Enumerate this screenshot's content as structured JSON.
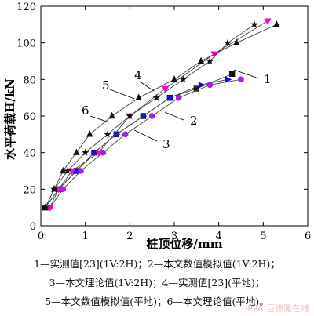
{
  "chart_data": {
    "type": "line",
    "xlabel": "桩顶位移/mm",
    "ylabel": "水平荷载H/kN",
    "xlim": [
      0,
      6
    ],
    "ylim": [
      0,
      120
    ],
    "xticks": [
      "0",
      "1",
      "2",
      "3",
      "4",
      "5",
      "6"
    ],
    "yticks": [
      "0",
      "20",
      "40",
      "60",
      "80",
      "100",
      "120"
    ],
    "series": [
      {
        "name": "1",
        "marker": "square",
        "color": "#111111",
        "x": [
          0.1,
          0.4,
          0.8,
          1.2,
          1.7,
          2.3,
          2.9,
          3.5,
          4.3
        ],
        "y": [
          10,
          20,
          30,
          40,
          50,
          60,
          70,
          75,
          83
        ]
      },
      {
        "name": "2",
        "marker": "triangle-right",
        "color": "#1010ee",
        "x": [
          0.1,
          0.4,
          0.8,
          1.2,
          1.7,
          2.3,
          2.9,
          3.6,
          4.2
        ],
        "y": [
          10,
          20,
          30,
          40,
          50,
          60,
          70,
          77,
          80
        ]
      },
      {
        "name": "3",
        "marker": "circle",
        "color": "#a020f0",
        "x": [
          0.2,
          0.5,
          0.9,
          1.4,
          1.9,
          2.5,
          3.1,
          3.8,
          4.5
        ],
        "y": [
          10,
          20,
          30,
          40,
          50,
          60,
          70,
          77,
          80
        ]
      },
      {
        "name": "4",
        "marker": "triangle-down",
        "color": "#ff00cc",
        "x": [
          0.2,
          0.4,
          0.7,
          1.3,
          2.0,
          2.8,
          3.9,
          5.1
        ],
        "y": [
          10,
          20,
          30,
          40,
          60,
          75,
          94,
          112
        ]
      },
      {
        "name": "5",
        "marker": "triangle-up",
        "color": "#111111",
        "x": [
          0.1,
          0.3,
          0.5,
          0.8,
          1.1,
          1.6,
          2.2,
          3.0,
          3.6,
          4.4,
          5.3
        ],
        "y": [
          10,
          20,
          30,
          40,
          50,
          60,
          70,
          80,
          90,
          100,
          110
        ]
      },
      {
        "name": "6",
        "marker": "star",
        "color": "#111111",
        "x": [
          0.1,
          0.3,
          0.6,
          1.0,
          1.5,
          2.0,
          2.6,
          3.2,
          3.8,
          4.2,
          4.8
        ],
        "y": [
          10,
          20,
          30,
          40,
          50,
          60,
          70,
          80,
          90,
          100,
          110
        ]
      }
    ],
    "callouts": [
      "1",
      "2",
      "3",
      "4",
      "5",
      "6"
    ],
    "legend": [
      {
        "text": "1—实测值[23](1V:2H)；2—本文数值模拟值(1V:2H)；"
      },
      {
        "text": "3—本文理论值(1V:2H)；4—实测值[23](平地)；"
      },
      {
        "text": "5—本文数值模拟值(平地)；6—本文理论值(平地)。"
      }
    ],
    "watermark": "IPPA 巨德隆在线"
  }
}
